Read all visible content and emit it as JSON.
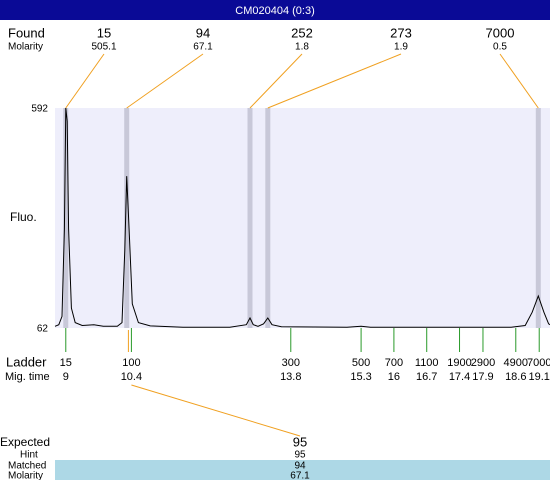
{
  "header": {
    "title": "CM020404 (0:3)"
  },
  "chart_data": {
    "type": "line",
    "found_label": "Found",
    "molarity_label": "Molarity",
    "found": [
      {
        "size": 15,
        "molarity": 505.1,
        "time": 9.0
      },
      {
        "size": 94,
        "molarity": 67.1,
        "time": 10.3
      },
      {
        "size": 252,
        "molarity": 1.8,
        "time": 12.93
      },
      {
        "size": 273,
        "molarity": 1.9,
        "time": 13.31
      },
      {
        "size": 7000,
        "molarity": 0.5,
        "time": 19.08
      }
    ],
    "ylabel": "Fluo.",
    "ylim": [
      62,
      592
    ],
    "yticks": [
      62,
      592
    ],
    "xlim": [
      8.77,
      19.33
    ],
    "color": "#000000",
    "x": [
      8.77,
      8.85,
      8.92,
      8.97,
      9.0,
      9.03,
      9.06,
      9.12,
      9.2,
      9.35,
      9.6,
      9.8,
      10.1,
      10.2,
      10.26,
      10.3,
      10.35,
      10.42,
      10.55,
      10.8,
      11.5,
      12.5,
      12.85,
      12.93,
      13.0,
      13.1,
      13.22,
      13.31,
      13.4,
      13.6,
      15.0,
      15.3,
      15.5,
      18.5,
      18.8,
      18.95,
      19.08,
      19.2,
      19.3,
      19.33
    ],
    "values": [
      66,
      70,
      90,
      300,
      592,
      560,
      300,
      110,
      75,
      68,
      70,
      66,
      66,
      75,
      250,
      428,
      300,
      120,
      75,
      67,
      64,
      64,
      70,
      86,
      70,
      66,
      72,
      86,
      70,
      65,
      64,
      66,
      64,
      64,
      68,
      100,
      139,
      100,
      72,
      70
    ],
    "ladder_label": "Ladder",
    "time_label": "Mig. time",
    "ladder": {
      "sizes": [
        15,
        100,
        300,
        500,
        700,
        1100,
        1900,
        2900,
        4900,
        7000
      ],
      "times": [
        9,
        10.4,
        13.8,
        15.3,
        16,
        16.7,
        17.4,
        17.9,
        18.6,
        19.1
      ]
    }
  },
  "expected": {
    "labels": [
      "Expected",
      "Hint",
      "Matched",
      "Molarity"
    ],
    "values": [
      95,
      95,
      94,
      67.1
    ]
  }
}
